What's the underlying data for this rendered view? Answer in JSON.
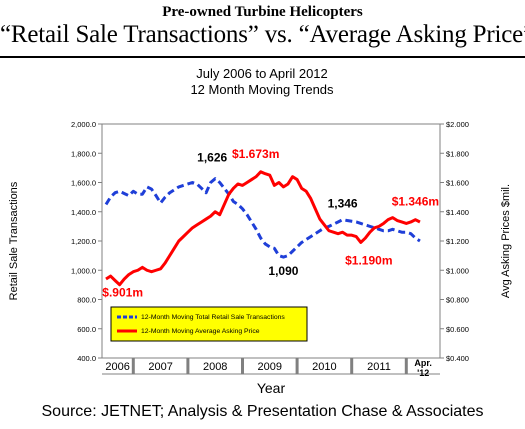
{
  "header": {
    "line1": "Pre-owned Turbine Helicopters",
    "line2": "“Retail Sale Transactions” vs. “Average Asking Price”"
  },
  "footer": {
    "source": "Source: JETNET; Analysis & Presentation Chase & Associates"
  },
  "chart_data": {
    "type": "line",
    "title": "July 2006 to April 2012",
    "subtitle": "12 Month Moving Trends",
    "xlabel": "Year",
    "ylabel": "Retail Sale Transactions",
    "y2label": "Avg Asking Prices $mil.",
    "ylim": [
      400,
      2000
    ],
    "y2lim": [
      0.4,
      2.0
    ],
    "yticks": [
      "400.0",
      "600.0",
      "800.0",
      "1,000.0",
      "1,200.0",
      "1,400.0",
      "1,600.0",
      "1,800.0",
      "2,000.0"
    ],
    "y2ticks": [
      "$0.400",
      "$0.600",
      "$0.800",
      "$1.000",
      "$1.200",
      "$1.400",
      "$1.600",
      "$1.800",
      "$2.000"
    ],
    "x_tick_labels": [
      "2006",
      "2007",
      "2008",
      "2009",
      "2010",
      "2011",
      "Apr.\n'12"
    ],
    "grid": false,
    "legend_position": "bottom-left",
    "series": [
      {
        "name": "12-Month Moving Total Retail Sale Transactions",
        "axis": "left",
        "color": "#1f3fd8",
        "style": "dashed",
        "points": [
          [
            "2006-07",
            1450
          ],
          [
            "2006-08",
            1500
          ],
          [
            "2006-09",
            1530
          ],
          [
            "2006-10",
            1540
          ],
          [
            "2006-11",
            1525
          ],
          [
            "2006-12",
            1510
          ],
          [
            "2007-01",
            1540
          ],
          [
            "2007-02",
            1520
          ],
          [
            "2007-03",
            1520
          ],
          [
            "2007-04",
            1570
          ],
          [
            "2007-05",
            1555
          ],
          [
            "2007-06",
            1510
          ],
          [
            "2007-07",
            1460
          ],
          [
            "2007-08",
            1500
          ],
          [
            "2007-09",
            1530
          ],
          [
            "2007-10",
            1550
          ],
          [
            "2007-11",
            1570
          ],
          [
            "2007-12",
            1580
          ],
          [
            "2008-01",
            1590
          ],
          [
            "2008-02",
            1600
          ],
          [
            "2008-03",
            1590
          ],
          [
            "2008-04",
            1560
          ],
          [
            "2008-05",
            1530
          ],
          [
            "2008-06",
            1600
          ],
          [
            "2008-07",
            1626
          ],
          [
            "2008-08",
            1600
          ],
          [
            "2008-09",
            1560
          ],
          [
            "2008-10",
            1520
          ],
          [
            "2008-11",
            1470
          ],
          [
            "2008-12",
            1450
          ],
          [
            "2009-01",
            1420
          ],
          [
            "2009-02",
            1380
          ],
          [
            "2009-03",
            1330
          ],
          [
            "2009-04",
            1280
          ],
          [
            "2009-05",
            1220
          ],
          [
            "2009-06",
            1180
          ],
          [
            "2009-07",
            1160
          ],
          [
            "2009-08",
            1150
          ],
          [
            "2009-09",
            1100
          ],
          [
            "2009-10",
            1090
          ],
          [
            "2009-11",
            1100
          ],
          [
            "2009-12",
            1130
          ],
          [
            "2010-01",
            1160
          ],
          [
            "2010-02",
            1190
          ],
          [
            "2010-03",
            1210
          ],
          [
            "2010-04",
            1230
          ],
          [
            "2010-05",
            1250
          ],
          [
            "2010-06",
            1270
          ],
          [
            "2010-07",
            1290
          ],
          [
            "2010-08",
            1300
          ],
          [
            "2010-09",
            1315
          ],
          [
            "2010-10",
            1330
          ],
          [
            "2010-11",
            1346
          ],
          [
            "2010-12",
            1340
          ],
          [
            "2011-01",
            1335
          ],
          [
            "2011-02",
            1330
          ],
          [
            "2011-03",
            1320
          ],
          [
            "2011-04",
            1310
          ],
          [
            "2011-05",
            1300
          ],
          [
            "2011-06",
            1290
          ],
          [
            "2011-07",
            1280
          ],
          [
            "2011-08",
            1270
          ],
          [
            "2011-09",
            1270
          ],
          [
            "2011-10",
            1280
          ],
          [
            "2011-11",
            1270
          ],
          [
            "2011-12",
            1260
          ],
          [
            "2012-01",
            1260
          ],
          [
            "2012-02",
            1250
          ],
          [
            "2012-03",
            1220
          ],
          [
            "2012-04",
            1200
          ]
        ]
      },
      {
        "name": "12-Month Moving Average Asking Price",
        "axis": "right",
        "color": "#ff0000",
        "style": "solid",
        "points": [
          [
            "2006-07",
            0.94
          ],
          [
            "2006-08",
            0.96
          ],
          [
            "2006-09",
            0.93
          ],
          [
            "2006-10",
            0.901
          ],
          [
            "2006-11",
            0.94
          ],
          [
            "2006-12",
            0.97
          ],
          [
            "2007-01",
            0.99
          ],
          [
            "2007-02",
            1.0
          ],
          [
            "2007-03",
            1.02
          ],
          [
            "2007-04",
            1.0
          ],
          [
            "2007-05",
            0.99
          ],
          [
            "2007-06",
            1.0
          ],
          [
            "2007-07",
            1.01
          ],
          [
            "2007-08",
            1.05
          ],
          [
            "2007-09",
            1.1
          ],
          [
            "2007-10",
            1.15
          ],
          [
            "2007-11",
            1.2
          ],
          [
            "2007-12",
            1.23
          ],
          [
            "2008-01",
            1.26
          ],
          [
            "2008-02",
            1.29
          ],
          [
            "2008-03",
            1.31
          ],
          [
            "2008-04",
            1.33
          ],
          [
            "2008-05",
            1.35
          ],
          [
            "2008-06",
            1.37
          ],
          [
            "2008-07",
            1.4
          ],
          [
            "2008-08",
            1.38
          ],
          [
            "2008-09",
            1.45
          ],
          [
            "2008-10",
            1.52
          ],
          [
            "2008-11",
            1.56
          ],
          [
            "2008-12",
            1.59
          ],
          [
            "2009-01",
            1.58
          ],
          [
            "2009-02",
            1.6
          ],
          [
            "2009-03",
            1.62
          ],
          [
            "2009-04",
            1.64
          ],
          [
            "2009-05",
            1.673
          ],
          [
            "2009-06",
            1.66
          ],
          [
            "2009-07",
            1.65
          ],
          [
            "2009-08",
            1.58
          ],
          [
            "2009-09",
            1.6
          ],
          [
            "2009-10",
            1.57
          ],
          [
            "2009-11",
            1.59
          ],
          [
            "2009-12",
            1.64
          ],
          [
            "2010-01",
            1.62
          ],
          [
            "2010-02",
            1.56
          ],
          [
            "2010-03",
            1.54
          ],
          [
            "2010-04",
            1.49
          ],
          [
            "2010-05",
            1.42
          ],
          [
            "2010-06",
            1.35
          ],
          [
            "2010-07",
            1.31
          ],
          [
            "2010-08",
            1.27
          ],
          [
            "2010-09",
            1.26
          ],
          [
            "2010-10",
            1.25
          ],
          [
            "2010-11",
            1.26
          ],
          [
            "2010-12",
            1.24
          ],
          [
            "2011-01",
            1.24
          ],
          [
            "2011-02",
            1.23
          ],
          [
            "2011-03",
            1.19
          ],
          [
            "2011-04",
            1.22
          ],
          [
            "2011-05",
            1.26
          ],
          [
            "2011-06",
            1.29
          ],
          [
            "2011-07",
            1.3
          ],
          [
            "2011-08",
            1.32
          ],
          [
            "2011-09",
            1.346
          ],
          [
            "2011-10",
            1.36
          ],
          [
            "2011-11",
            1.34
          ],
          [
            "2011-12",
            1.33
          ],
          [
            "2012-01",
            1.32
          ],
          [
            "2012-02",
            1.33
          ],
          [
            "2012-03",
            1.346
          ],
          [
            "2012-04",
            1.33
          ]
        ]
      }
    ],
    "annotations": [
      {
        "text": "1,626",
        "series": 0,
        "at": "2008-07",
        "color": "#000000"
      },
      {
        "text": "1,090",
        "series": 0,
        "at": "2009-10",
        "color": "#000000"
      },
      {
        "text": "1,346",
        "series": 0,
        "at": "2010-11",
        "color": "#000000"
      },
      {
        "text": "$.901m",
        "series": 1,
        "at": "2006-10",
        "color": "#ff0000"
      },
      {
        "text": "$1.673m",
        "series": 1,
        "at": "2009-05",
        "color": "#ff0000"
      },
      {
        "text": "$1.190m",
        "series": 1,
        "at": "2011-03",
        "color": "#ff0000"
      },
      {
        "text": "$1.346m",
        "series": 1,
        "at": "2012-03",
        "color": "#ff0000"
      }
    ],
    "legend_background": "#ffff00"
  }
}
